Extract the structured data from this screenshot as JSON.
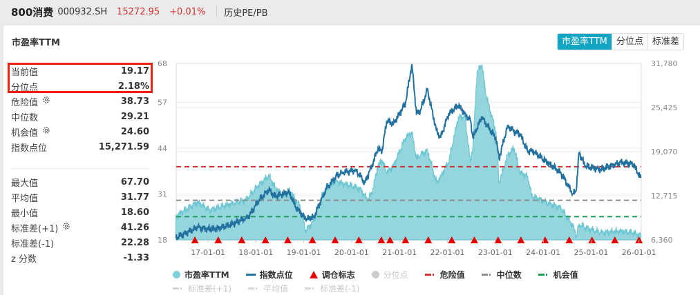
{
  "header": {
    "index_name": "800消费",
    "code": "000932.SH",
    "price": "15272.95",
    "change": "+0.01%",
    "link": "历史PE/PB"
  },
  "card": {
    "title": "市盈率TTM",
    "tabs": [
      {
        "label": "市盈率TTM",
        "active": true
      },
      {
        "label": "分位点",
        "active": false
      },
      {
        "label": "标准差",
        "active": false
      }
    ]
  },
  "stats": {
    "top": [
      {
        "label": "当前值",
        "value": "19.17",
        "icon": null
      },
      {
        "label": "分位点",
        "value": "2.18%",
        "icon": null
      },
      {
        "label": "危险值",
        "value": "38.73",
        "icon": "gear-icon"
      },
      {
        "label": "中位数",
        "value": "29.21",
        "icon": null
      },
      {
        "label": "机会值",
        "value": "24.60",
        "icon": "gear-icon"
      },
      {
        "label": "指数点位",
        "value": "15,271.59",
        "icon": null
      }
    ],
    "bottom": [
      {
        "label": "最大值",
        "value": "67.70",
        "icon": null
      },
      {
        "label": "平均值",
        "value": "31.77",
        "icon": null
      },
      {
        "label": "最小值",
        "value": "18.60",
        "icon": null
      },
      {
        "label": "标准差(+1)",
        "value": "41.26",
        "icon": "gear-icon"
      },
      {
        "label": "标准差(-1)",
        "value": "22.28",
        "icon": null
      },
      {
        "label": "z 分数",
        "value": "-1.33",
        "icon": null
      }
    ]
  },
  "colors": {
    "accent": "#12a6c4",
    "pe_fill": "#95d6de",
    "pe_line": "#6cc6d2",
    "index_line": "#23719f",
    "danger": "#d0312d",
    "median": "#8c8c8c",
    "opportunity": "#1f9d55",
    "marker": "#e60000",
    "highlight_box": "#f0200a"
  },
  "chart_data": {
    "type": "line",
    "y_left": {
      "range": [
        18,
        68
      ],
      "ticks": [
        "68",
        "57",
        "44",
        "31",
        "18"
      ],
      "tick_values": [
        68,
        57,
        44,
        31,
        18
      ]
    },
    "y_right": {
      "range": [
        6360,
        31780
      ],
      "ticks": [
        "31,780",
        "25,425",
        "19,070",
        "12,715",
        "6,360"
      ],
      "tick_values": [
        31780,
        25425,
        19070,
        12715,
        6360
      ]
    },
    "x_ticks": [
      {
        "label": "17-01-01",
        "date": "2017-01-01"
      },
      {
        "label": "18-01-01",
        "date": "2018-01-01"
      },
      {
        "label": "19-01-01",
        "date": "2019-01-01"
      },
      {
        "label": "20-01-01",
        "date": "2020-01-01"
      },
      {
        "label": "21-01-01",
        "date": "2021-01-01"
      },
      {
        "label": "22-01-01",
        "date": "2022-01-01"
      },
      {
        "label": "23-01-01",
        "date": "2023-01-01"
      },
      {
        "label": "24-01-01",
        "date": "2024-01-01"
      },
      {
        "label": "25-01-01",
        "date": "2025-01-01"
      },
      {
        "label": "26-01-01",
        "date": "2026-01-01"
      }
    ],
    "grid": true,
    "series": [
      {
        "name": "市盈率TTM",
        "axis": "left",
        "style": "area",
        "points": [
          [
            "2016-05-01",
            24.8
          ],
          [
            "2016-10-15",
            28.7
          ],
          [
            "2017-01-15",
            26.4
          ],
          [
            "2017-04-15",
            27.5
          ],
          [
            "2017-07-15",
            28.4
          ],
          [
            "2017-10-15",
            29.3
          ],
          [
            "2017-11-15",
            30.5
          ],
          [
            "2018-01-15",
            33.2
          ],
          [
            "2018-04-10",
            36.2
          ],
          [
            "2018-05-25",
            33.0
          ],
          [
            "2018-08-01",
            30.3
          ],
          [
            "2018-09-10",
            32.3
          ],
          [
            "2018-10-30",
            29.5
          ],
          [
            "2018-12-05",
            27.4
          ],
          [
            "2019-01-15",
            20.5
          ],
          [
            "2019-03-20",
            23.5
          ],
          [
            "2019-05-25",
            31.0
          ],
          [
            "2019-06-25",
            33.0
          ],
          [
            "2019-09-10",
            34.8
          ],
          [
            "2019-10-20",
            34.0
          ],
          [
            "2020-02-01",
            33.0
          ],
          [
            "2020-03-10",
            32.3
          ],
          [
            "2020-04-10",
            30.5
          ],
          [
            "2020-05-01",
            29.3
          ],
          [
            "2020-06-05",
            31.3
          ],
          [
            "2020-07-20",
            39.0
          ],
          [
            "2020-08-20",
            40.6
          ],
          [
            "2020-09-25",
            37.0
          ],
          [
            "2020-11-15",
            39.0
          ],
          [
            "2021-02-15",
            46.9
          ],
          [
            "2021-04-05",
            48.5
          ],
          [
            "2021-05-10",
            41.0
          ],
          [
            "2021-06-10",
            42.0
          ],
          [
            "2021-08-01",
            43.4
          ],
          [
            "2021-10-10",
            34.2
          ],
          [
            "2021-11-10",
            36.0
          ],
          [
            "2022-01-10",
            40.0
          ],
          [
            "2022-03-25",
            52.8
          ],
          [
            "2022-05-15",
            52.8
          ],
          [
            "2022-06-25",
            40.0
          ],
          [
            "2022-07-15",
            45.0
          ],
          [
            "2022-08-15",
            65.5
          ],
          [
            "2022-09-20",
            67.7
          ],
          [
            "2022-10-25",
            58.6
          ],
          [
            "2023-01-05",
            48.8
          ],
          [
            "2023-01-30",
            34.2
          ],
          [
            "2023-04-05",
            42.0
          ],
          [
            "2023-05-25",
            44.0
          ],
          [
            "2023-07-10",
            37.0
          ],
          [
            "2023-09-05",
            36.0
          ],
          [
            "2023-10-05",
            30.5
          ],
          [
            "2024-01-01",
            29.0
          ],
          [
            "2024-05-15",
            27.0
          ],
          [
            "2024-08-15",
            22.0
          ],
          [
            "2024-09-10",
            19.0
          ],
          [
            "2024-10-01",
            22.5
          ],
          [
            "2024-11-15",
            21.5
          ],
          [
            "2025-03-15",
            20.0
          ],
          [
            "2025-08-15",
            20.5
          ],
          [
            "2025-11-15",
            20.0
          ],
          [
            "2026-01-15",
            19.17
          ]
        ]
      },
      {
        "name": "指数点位",
        "axis": "right",
        "style": "line",
        "points": [
          [
            "2016-05-01",
            6660
          ],
          [
            "2016-10-15",
            8150
          ],
          [
            "2017-01-15",
            7850
          ],
          [
            "2017-04-15",
            8150
          ],
          [
            "2017-07-15",
            8700
          ],
          [
            "2017-10-15",
            9500
          ],
          [
            "2017-11-15",
            9935
          ],
          [
            "2018-01-15",
            11800
          ],
          [
            "2018-04-10",
            13610
          ],
          [
            "2018-05-25",
            12620
          ],
          [
            "2018-08-01",
            13000
          ],
          [
            "2018-09-10",
            13310
          ],
          [
            "2018-10-30",
            11130
          ],
          [
            "2018-12-05",
            10300
          ],
          [
            "2019-01-15",
            9340
          ],
          [
            "2019-03-20",
            9640
          ],
          [
            "2019-05-25",
            12620
          ],
          [
            "2019-06-25",
            13800
          ],
          [
            "2019-09-10",
            15600
          ],
          [
            "2019-10-20",
            16090
          ],
          [
            "2020-02-01",
            16390
          ],
          [
            "2020-03-10",
            15500
          ],
          [
            "2020-04-10",
            14600
          ],
          [
            "2020-05-01",
            15500
          ],
          [
            "2020-06-05",
            17080
          ],
          [
            "2020-07-20",
            19570
          ],
          [
            "2020-08-20",
            19070
          ],
          [
            "2020-09-25",
            23540
          ],
          [
            "2020-11-15",
            23040
          ],
          [
            "2021-02-15",
            26020
          ],
          [
            "2021-04-05",
            31680
          ],
          [
            "2021-05-10",
            24530
          ],
          [
            "2021-06-10",
            25030
          ],
          [
            "2021-08-01",
            28010
          ],
          [
            "2021-10-10",
            22050
          ],
          [
            "2021-11-10",
            21060
          ],
          [
            "2022-01-10",
            24530
          ],
          [
            "2022-03-25",
            25720
          ],
          [
            "2022-05-15",
            24500
          ],
          [
            "2022-06-25",
            23540
          ],
          [
            "2022-07-15",
            21060
          ],
          [
            "2022-08-15",
            22500
          ],
          [
            "2022-09-20",
            24040
          ],
          [
            "2022-10-25",
            23000
          ],
          [
            "2023-01-05",
            21060
          ],
          [
            "2023-01-30",
            18080
          ],
          [
            "2023-04-05",
            22840
          ],
          [
            "2023-05-25",
            22000
          ],
          [
            "2023-07-10",
            21550
          ],
          [
            "2023-09-05",
            19070
          ],
          [
            "2023-10-05",
            19270
          ],
          [
            "2024-01-01",
            18000
          ],
          [
            "2024-05-15",
            16000
          ],
          [
            "2024-08-15",
            13000
          ],
          [
            "2024-09-10",
            13500
          ],
          [
            "2024-10-01",
            19000
          ],
          [
            "2024-11-15",
            17000
          ],
          [
            "2025-03-15",
            16500
          ],
          [
            "2025-08-15",
            17500
          ],
          [
            "2025-11-15",
            17300
          ],
          [
            "2026-01-15",
            15272
          ]
        ]
      }
    ],
    "reference_lines": [
      {
        "name": "危险值",
        "value": 38.73,
        "color": "#d0312d"
      },
      {
        "name": "中位数",
        "value": 29.21,
        "color": "#8c8c8c"
      },
      {
        "name": "机会值",
        "value": 24.6,
        "color": "#1f9d55"
      }
    ],
    "rebalance_markers": [
      "2016-09-23",
      "2017-03-20",
      "2017-09-15",
      "2018-03-15",
      "2018-09-01",
      "2019-03-08",
      "2019-08-28",
      "2020-02-25",
      "2020-08-15",
      "2020-10-20",
      "2021-02-15",
      "2021-08-08",
      "2022-02-03",
      "2022-07-25",
      "2023-01-22",
      "2023-07-15",
      "2024-01-15",
      "2024-07-18",
      "2025-01-08",
      "2025-07-01",
      "2026-01-01"
    ],
    "legend": {
      "placement": "bottom",
      "rows": [
        [
          {
            "label": "市盈率TTM",
            "kind": "dot",
            "color": "#7fd0da",
            "active": true
          },
          {
            "label": "指数点位",
            "kind": "line",
            "color": "#23719f",
            "active": true
          },
          {
            "label": "调仓标志",
            "kind": "triangle",
            "color": "#e60000",
            "active": true
          },
          {
            "label": "分位点",
            "kind": "dot",
            "color": "#cccccc",
            "active": false
          },
          {
            "label": "危险值",
            "kind": "dash",
            "color": "#d0312d",
            "active": true
          },
          {
            "label": "中位数",
            "kind": "dash",
            "color": "#8c8c8c",
            "active": true
          },
          {
            "label": "机会值",
            "kind": "dash",
            "color": "#1f9d55",
            "active": true
          }
        ],
        [
          {
            "label": "标准差(+1)",
            "kind": "dash",
            "color": "#d5d5d5",
            "active": false
          },
          {
            "label": "平均值",
            "kind": "dash",
            "color": "#d5d5d5",
            "active": false
          },
          {
            "label": "标准差(-1)",
            "kind": "dash",
            "color": "#d5d5d5",
            "active": false
          }
        ]
      ]
    }
  }
}
